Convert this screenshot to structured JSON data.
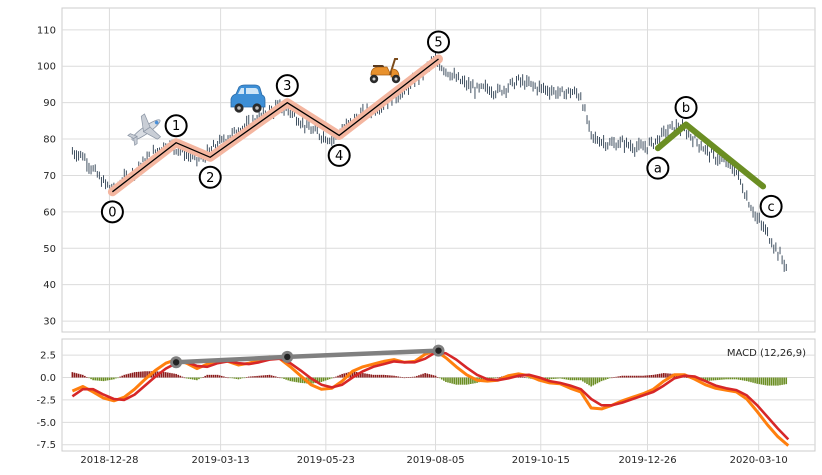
{
  "chart_data": [
    {
      "type": "candlestick",
      "panel": "price",
      "ylim": [
        27,
        116
      ],
      "y_ticks": [
        30,
        40,
        50,
        60,
        70,
        80,
        90,
        100,
        110
      ],
      "x_range": [
        "2018-11-26",
        "2020-04-17"
      ],
      "grid": true,
      "price_series": [
        [
          "2018-12-03",
          76.5
        ],
        [
          "2018-12-10",
          75.5
        ],
        [
          "2018-12-17",
          71.5
        ],
        [
          "2018-12-24",
          68.0
        ],
        [
          "2018-12-31",
          66.0
        ],
        [
          "2019-01-07",
          69.0
        ],
        [
          "2019-01-14",
          71.0
        ],
        [
          "2019-01-21",
          74.0
        ],
        [
          "2019-01-28",
          76.5
        ],
        [
          "2019-02-04",
          78.5
        ],
        [
          "2019-02-11",
          77.5
        ],
        [
          "2019-02-18",
          76.0
        ],
        [
          "2019-02-25",
          74.5
        ],
        [
          "2019-03-04",
          76.0
        ],
        [
          "2019-03-11",
          78.5
        ],
        [
          "2019-03-18",
          80.5
        ],
        [
          "2019-03-25",
          82.5
        ],
        [
          "2019-04-01",
          84.0
        ],
        [
          "2019-04-08",
          86.0
        ],
        [
          "2019-04-15",
          87.5
        ],
        [
          "2019-04-22",
          89.0
        ],
        [
          "2019-04-29",
          87.5
        ],
        [
          "2019-05-06",
          85.0
        ],
        [
          "2019-05-13",
          82.5
        ],
        [
          "2019-05-20",
          81.0
        ],
        [
          "2019-05-27",
          80.0
        ],
        [
          "2019-06-03",
          82.5
        ],
        [
          "2019-06-10",
          85.0
        ],
        [
          "2019-06-17",
          87.0
        ],
        [
          "2019-06-24",
          88.0
        ],
        [
          "2019-07-01",
          90.0
        ],
        [
          "2019-07-08",
          91.5
        ],
        [
          "2019-07-15",
          93.0
        ],
        [
          "2019-07-22",
          96.0
        ],
        [
          "2019-07-29",
          99.0
        ],
        [
          "2019-08-05",
          101.5
        ],
        [
          "2019-08-12",
          99.0
        ],
        [
          "2019-08-19",
          96.5
        ],
        [
          "2019-08-26",
          95.0
        ],
        [
          "2019-09-02",
          93.5
        ],
        [
          "2019-09-09",
          94.0
        ],
        [
          "2019-09-16",
          93.0
        ],
        [
          "2019-09-23",
          94.5
        ],
        [
          "2019-09-30",
          96.0
        ],
        [
          "2019-10-07",
          95.0
        ],
        [
          "2019-10-14",
          94.0
        ],
        [
          "2019-10-21",
          93.5
        ],
        [
          "2019-10-28",
          92.5
        ],
        [
          "2019-11-04",
          93.0
        ],
        [
          "2019-11-11",
          92.0
        ],
        [
          "2019-11-18",
          80.5
        ],
        [
          "2019-11-25",
          79.5
        ],
        [
          "2019-12-02",
          78.5
        ],
        [
          "2019-12-09",
          79.0
        ],
        [
          "2019-12-16",
          78.0
        ],
        [
          "2019-12-23",
          77.5
        ],
        [
          "2019-12-30",
          79.0
        ],
        [
          "2020-01-06",
          81.5
        ],
        [
          "2020-01-13",
          83.5
        ],
        [
          "2020-01-20",
          82.5
        ],
        [
          "2020-01-27",
          80.0
        ],
        [
          "2020-02-03",
          77.0
        ],
        [
          "2020-02-10",
          75.0
        ],
        [
          "2020-02-17",
          73.5
        ],
        [
          "2020-02-24",
          71.0
        ],
        [
          "2020-03-02",
          64.0
        ],
        [
          "2020-03-09",
          58.0
        ],
        [
          "2020-03-16",
          54.0
        ],
        [
          "2020-03-23",
          49.0
        ],
        [
          "2020-03-30",
          44.0
        ]
      ],
      "waves": [
        {
          "labels": [
            "0",
            "1",
            "2",
            "3",
            "4",
            "5"
          ],
          "points": [
            [
              "2018-12-30",
              65.5
            ],
            [
              "2019-02-11",
              79.0
            ],
            [
              "2019-03-06",
              75.0
            ],
            [
              "2019-04-27",
              90.0
            ],
            [
              "2019-06-01",
              81.0
            ],
            [
              "2019-08-07",
              102.0
            ]
          ],
          "color": "#f4b6a0"
        },
        {
          "labels": [
            "a",
            "b",
            "c"
          ],
          "points": [
            [
              "2020-01-02",
              77.5
            ],
            [
              "2020-01-21",
              84.0
            ],
            [
              "2020-03-13",
              67.0
            ]
          ],
          "color": "#6b8e23"
        }
      ],
      "icons": [
        "airplane-icon",
        "car-icon",
        "scooter-icon"
      ]
    },
    {
      "type": "macd",
      "panel": "indicator",
      "label": "MACD (12,26,9)",
      "ylim": [
        -8.2,
        4.3
      ],
      "y_ticks": [
        2.5,
        0.0,
        -2.5,
        -5.0,
        -7.5
      ],
      "grid": true,
      "x_ticks": [
        "2018-12-28",
        "2019-03-13",
        "2019-05-23",
        "2019-08-05",
        "2019-10-15",
        "2019-12-26",
        "2020-03-10"
      ],
      "macd_line": [
        [
          "2018-12-03",
          -1.5
        ],
        [
          "2018-12-10",
          -1.0
        ],
        [
          "2018-12-17",
          -1.6
        ],
        [
          "2018-12-24",
          -2.3
        ],
        [
          "2018-12-31",
          -2.6
        ],
        [
          "2019-01-07",
          -2.2
        ],
        [
          "2019-01-14",
          -1.3
        ],
        [
          "2019-01-21",
          -0.2
        ],
        [
          "2019-01-28",
          0.8
        ],
        [
          "2019-02-04",
          1.6
        ],
        [
          "2019-02-11",
          2.0
        ],
        [
          "2019-02-18",
          1.6
        ],
        [
          "2019-02-25",
          1.0
        ],
        [
          "2019-03-04",
          1.5
        ],
        [
          "2019-03-11",
          1.9
        ],
        [
          "2019-03-18",
          1.8
        ],
        [
          "2019-03-25",
          1.4
        ],
        [
          "2019-04-01",
          1.6
        ],
        [
          "2019-04-08",
          1.9
        ],
        [
          "2019-04-15",
          2.3
        ],
        [
          "2019-04-22",
          2.1
        ],
        [
          "2019-04-29",
          1.2
        ],
        [
          "2019-05-06",
          0.2
        ],
        [
          "2019-05-13",
          -0.8
        ],
        [
          "2019-05-20",
          -1.3
        ],
        [
          "2019-05-27",
          -1.2
        ],
        [
          "2019-06-03",
          -0.4
        ],
        [
          "2019-06-10",
          0.7
        ],
        [
          "2019-06-17",
          1.2
        ],
        [
          "2019-06-24",
          1.5
        ],
        [
          "2019-07-01",
          1.8
        ],
        [
          "2019-07-08",
          2.0
        ],
        [
          "2019-07-15",
          1.7
        ],
        [
          "2019-07-22",
          1.8
        ],
        [
          "2019-07-29",
          2.6
        ],
        [
          "2019-08-05",
          3.0
        ],
        [
          "2019-08-12",
          2.2
        ],
        [
          "2019-08-19",
          1.2
        ],
        [
          "2019-08-26",
          0.3
        ],
        [
          "2019-09-02",
          -0.3
        ],
        [
          "2019-09-09",
          -0.4
        ],
        [
          "2019-09-16",
          -0.3
        ],
        [
          "2019-09-23",
          0.2
        ],
        [
          "2019-09-30",
          0.4
        ],
        [
          "2019-10-07",
          0.2
        ],
        [
          "2019-10-14",
          -0.3
        ],
        [
          "2019-10-21",
          -0.6
        ],
        [
          "2019-10-28",
          -0.7
        ],
        [
          "2019-11-04",
          -1.2
        ],
        [
          "2019-11-11",
          -1.6
        ],
        [
          "2019-11-18",
          -3.4
        ],
        [
          "2019-11-25",
          -3.5
        ],
        [
          "2019-12-02",
          -3.1
        ],
        [
          "2019-12-09",
          -2.6
        ],
        [
          "2019-12-16",
          -2.2
        ],
        [
          "2019-12-23",
          -1.8
        ],
        [
          "2019-12-30",
          -1.3
        ],
        [
          "2020-01-06",
          -0.4
        ],
        [
          "2020-01-13",
          0.3
        ],
        [
          "2020-01-20",
          0.3
        ],
        [
          "2020-01-27",
          -0.2
        ],
        [
          "2020-02-03",
          -0.8
        ],
        [
          "2020-02-10",
          -1.2
        ],
        [
          "2020-02-17",
          -1.4
        ],
        [
          "2020-02-24",
          -1.6
        ],
        [
          "2020-03-02",
          -2.4
        ],
        [
          "2020-03-09",
          -3.8
        ],
        [
          "2020-03-16",
          -5.3
        ],
        [
          "2020-03-23",
          -6.6
        ],
        [
          "2020-03-30",
          -7.6
        ]
      ],
      "signal_line": [
        [
          "2018-12-03",
          -2.1
        ],
        [
          "2018-12-10",
          -1.3
        ],
        [
          "2018-12-17",
          -1.3
        ],
        [
          "2018-12-24",
          -1.9
        ],
        [
          "2018-12-31",
          -2.4
        ],
        [
          "2019-01-07",
          -2.5
        ],
        [
          "2019-01-14",
          -1.9
        ],
        [
          "2019-01-21",
          -0.9
        ],
        [
          "2019-01-28",
          0.1
        ],
        [
          "2019-02-04",
          1.0
        ],
        [
          "2019-02-11",
          1.6
        ],
        [
          "2019-02-18",
          1.7
        ],
        [
          "2019-02-25",
          1.3
        ],
        [
          "2019-03-04",
          1.2
        ],
        [
          "2019-03-11",
          1.6
        ],
        [
          "2019-03-18",
          1.8
        ],
        [
          "2019-03-25",
          1.6
        ],
        [
          "2019-04-01",
          1.5
        ],
        [
          "2019-04-08",
          1.7
        ],
        [
          "2019-04-15",
          2.0
        ],
        [
          "2019-04-22",
          2.1
        ],
        [
          "2019-04-29",
          1.6
        ],
        [
          "2019-05-06",
          0.8
        ],
        [
          "2019-05-13",
          -0.1
        ],
        [
          "2019-05-20",
          -0.8
        ],
        [
          "2019-05-27",
          -1.1
        ],
        [
          "2019-06-03",
          -0.8
        ],
        [
          "2019-06-10",
          0.0
        ],
        [
          "2019-06-17",
          0.7
        ],
        [
          "2019-06-24",
          1.2
        ],
        [
          "2019-07-01",
          1.5
        ],
        [
          "2019-07-08",
          1.8
        ],
        [
          "2019-07-15",
          1.7
        ],
        [
          "2019-07-22",
          1.7
        ],
        [
          "2019-07-29",
          2.1
        ],
        [
          "2019-08-05",
          2.8
        ],
        [
          "2019-08-12",
          2.7
        ],
        [
          "2019-08-19",
          2.0
        ],
        [
          "2019-08-26",
          1.1
        ],
        [
          "2019-09-02",
          0.3
        ],
        [
          "2019-09-09",
          -0.2
        ],
        [
          "2019-09-16",
          -0.3
        ],
        [
          "2019-09-23",
          -0.1
        ],
        [
          "2019-09-30",
          0.2
        ],
        [
          "2019-10-07",
          0.3
        ],
        [
          "2019-10-14",
          0.0
        ],
        [
          "2019-10-21",
          -0.4
        ],
        [
          "2019-10-28",
          -0.6
        ],
        [
          "2019-11-04",
          -0.9
        ],
        [
          "2019-11-11",
          -1.3
        ],
        [
          "2019-11-18",
          -2.4
        ],
        [
          "2019-11-25",
          -3.1
        ],
        [
          "2019-12-02",
          -3.1
        ],
        [
          "2019-12-09",
          -2.8
        ],
        [
          "2019-12-16",
          -2.4
        ],
        [
          "2019-12-23",
          -2.0
        ],
        [
          "2019-12-30",
          -1.6
        ],
        [
          "2020-01-06",
          -0.9
        ],
        [
          "2020-01-13",
          -0.1
        ],
        [
          "2020-01-20",
          0.2
        ],
        [
          "2020-01-27",
          0.1
        ],
        [
          "2020-02-03",
          -0.4
        ],
        [
          "2020-02-10",
          -0.9
        ],
        [
          "2020-02-17",
          -1.2
        ],
        [
          "2020-02-24",
          -1.4
        ],
        [
          "2020-03-02",
          -2.0
        ],
        [
          "2020-03-09",
          -3.1
        ],
        [
          "2020-03-16",
          -4.4
        ],
        [
          "2020-03-23",
          -5.7
        ],
        [
          "2020-03-30",
          -6.9
        ]
      ],
      "divergence_points": [
        [
          "2019-02-11",
          1.7
        ],
        [
          "2019-04-27",
          2.3
        ],
        [
          "2019-08-07",
          3.0
        ]
      ],
      "colors": {
        "macd": "#ff7f0e",
        "signal": "#d62728",
        "hist_positive": "#8b1a1a",
        "hist_negative": "#6b8e23",
        "divergence": "#808080",
        "up_candle": "#2c3e50"
      }
    }
  ]
}
